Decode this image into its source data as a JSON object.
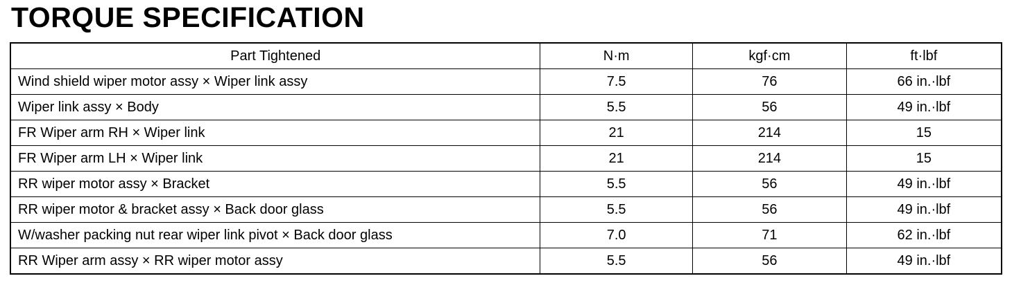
{
  "title": "TORQUE SPECIFICATION",
  "table": {
    "headers": [
      "Part Tightened",
      "N·m",
      "kgf·cm",
      "ft·lbf"
    ],
    "rows": [
      [
        "Wind shield wiper motor assy × Wiper link assy",
        "7.5",
        "76",
        "66 in.·lbf"
      ],
      [
        "Wiper link assy × Body",
        "5.5",
        "56",
        "49 in.·lbf"
      ],
      [
        "FR Wiper arm RH × Wiper link",
        "21",
        "214",
        "15"
      ],
      [
        "FR Wiper arm LH × Wiper link",
        "21",
        "214",
        "15"
      ],
      [
        "RR wiper motor assy × Bracket",
        "5.5",
        "56",
        "49 in.·lbf"
      ],
      [
        "RR wiper motor & bracket assy × Back door glass",
        "5.5",
        "56",
        "49 in.·lbf"
      ],
      [
        "W/washer packing nut rear wiper link pivot × Back door glass",
        "7.0",
        "71",
        "62 in.·lbf"
      ],
      [
        "RR Wiper arm assy × RR wiper motor assy",
        "5.5",
        "56",
        "49 in.·lbf"
      ]
    ]
  }
}
